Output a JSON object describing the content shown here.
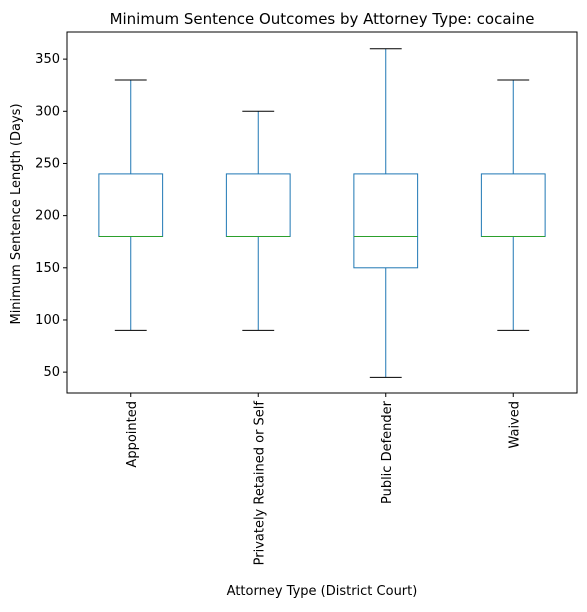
{
  "chart_data": {
    "type": "box",
    "title": "Minimum Sentence Outcomes by Attorney Type: cocaine",
    "xlabel": "Attorney Type (District Court)",
    "ylabel": "Minimum Sentence Length (Days)",
    "ylim": [
      30,
      376
    ],
    "yticks": [
      50,
      100,
      150,
      200,
      250,
      300,
      350
    ],
    "categories": [
      "Appointed",
      "Privately Retained or Self",
      "Public Defender",
      "Waived"
    ],
    "boxes": [
      {
        "category": "Appointed",
        "whisker_low": 90,
        "q1": 180,
        "median": 180,
        "q3": 240,
        "whisker_high": 330
      },
      {
        "category": "Privately Retained or Self",
        "whisker_low": 90,
        "q1": 180,
        "median": 180,
        "q3": 240,
        "whisker_high": 300
      },
      {
        "category": "Public Defender",
        "whisker_low": 45,
        "q1": 150,
        "median": 180,
        "q3": 240,
        "whisker_high": 360
      },
      {
        "category": "Waived",
        "whisker_low": 90,
        "q1": 180,
        "median": 180,
        "q3": 240,
        "whisker_high": 330
      }
    ],
    "grid": false,
    "colors": {
      "box": "#1f77b4",
      "median": "#2ca02c",
      "cap": "#000000",
      "axis": "#000000"
    }
  }
}
